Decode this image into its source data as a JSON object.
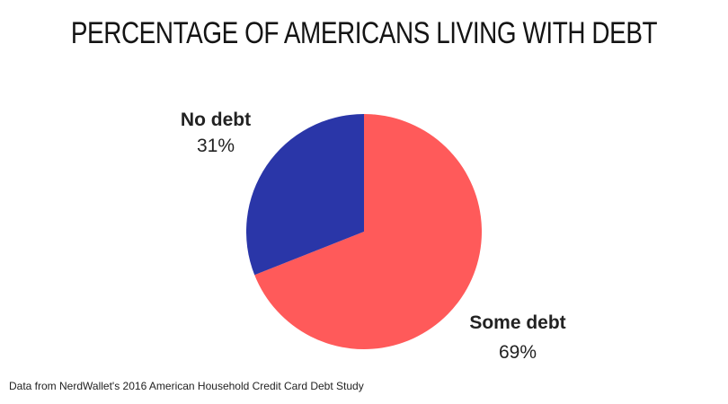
{
  "chart_data": {
    "type": "pie",
    "title": "PERCENTAGE OF AMERICANS LIVING WITH DEBT",
    "slices": [
      {
        "label": "Some debt",
        "value": 69,
        "value_label": "69%",
        "color": "#ff5a5a"
      },
      {
        "label": "No debt",
        "value": 31,
        "value_label": "31%",
        "color": "#2a36a8"
      }
    ],
    "start_angle_deg": 0,
    "direction": "clockwise"
  },
  "source_note": "Data from NerdWallet's 2016 American Household Credit Card Debt Study"
}
